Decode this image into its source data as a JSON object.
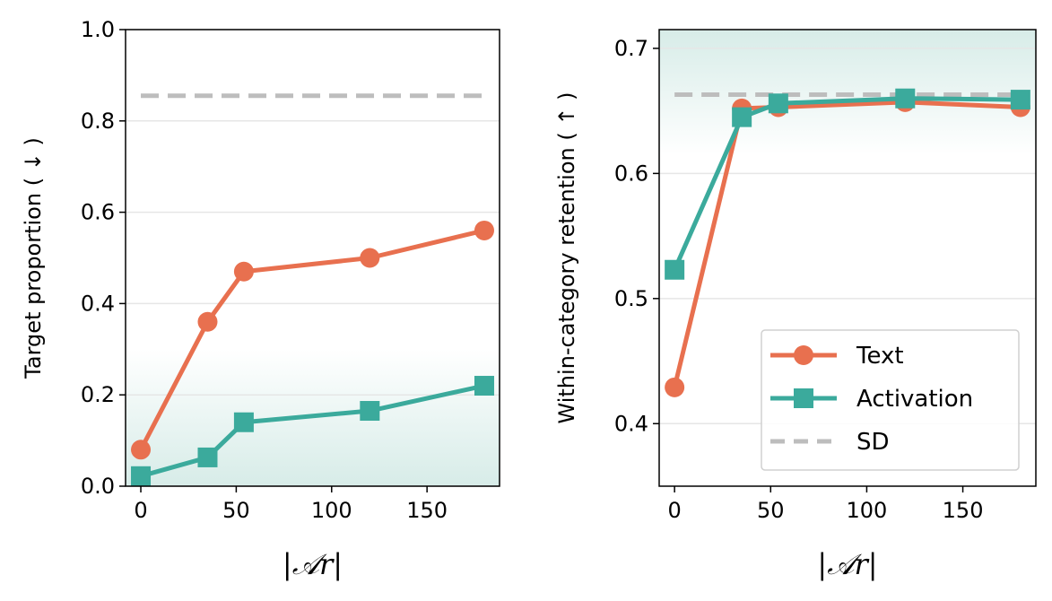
{
  "colors": {
    "text": "#E8704F",
    "activation": "#3BAA9C",
    "sd": "#BDBDBD",
    "shade": "#D9EEEA"
  },
  "chart_data": [
    {
      "type": "line",
      "xlabel": "|𝒜r|",
      "ylabel": "Target proportion ( ↓ )",
      "xlim": [
        -8,
        188
      ],
      "ylim": [
        0.0,
        1.0
      ],
      "xticks": [
        "0",
        "50",
        "100",
        "150"
      ],
      "yticks": [
        "0.0",
        "0.2",
        "0.4",
        "0.6",
        "0.8",
        "1.0"
      ],
      "grid": "horizontal",
      "shaded_band": [
        0.0,
        0.3
      ],
      "x": [
        0,
        35,
        54,
        120,
        180
      ],
      "series": [
        {
          "name": "Text",
          "marker": "circle",
          "values": [
            0.08,
            0.36,
            0.47,
            0.5,
            0.56
          ]
        },
        {
          "name": "Activation",
          "marker": "square",
          "values": [
            0.022,
            0.063,
            0.14,
            0.165,
            0.22
          ]
        }
      ],
      "reference": {
        "name": "SD",
        "value": 0.855,
        "style": "dashed"
      }
    },
    {
      "type": "line",
      "xlabel": "|𝒜r|",
      "ylabel": "Within-category retention ( ↑ )",
      "xlim": [
        -8,
        188
      ],
      "ylim": [
        0.35,
        0.715
      ],
      "xticks": [
        "0",
        "50",
        "100",
        "150"
      ],
      "yticks": [
        "0.4",
        "0.5",
        "0.6",
        "0.7"
      ],
      "grid": "horizontal",
      "shaded_band": [
        0.615,
        0.715
      ],
      "x": [
        0,
        35,
        54,
        120,
        180
      ],
      "series": [
        {
          "name": "Text",
          "marker": "circle",
          "values": [
            0.429,
            0.652,
            0.653,
            0.657,
            0.653
          ]
        },
        {
          "name": "Activation",
          "marker": "square",
          "values": [
            0.523,
            0.645,
            0.656,
            0.66,
            0.659
          ]
        }
      ],
      "reference": {
        "name": "SD",
        "value": 0.663,
        "style": "dashed"
      },
      "legend": {
        "position": "lower-right",
        "entries": [
          "Text",
          "Activation",
          "SD"
        ]
      }
    }
  ]
}
